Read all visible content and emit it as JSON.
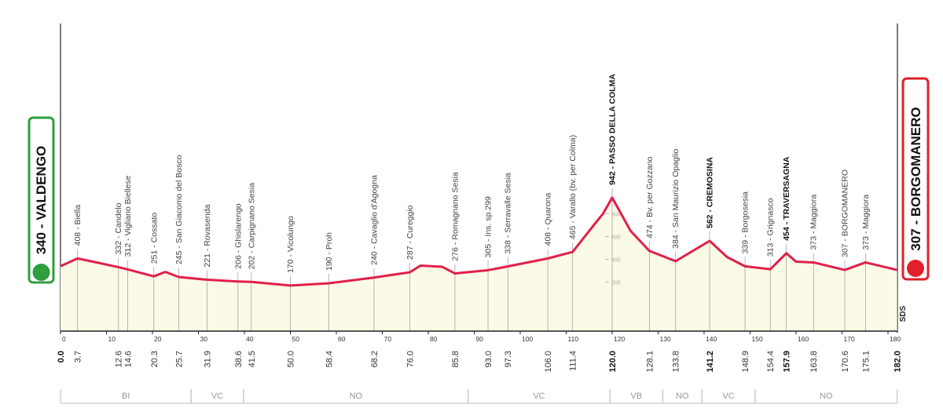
{
  "chart_data": {
    "type": "area",
    "start": "340 - VALDENGO",
    "finish": "307 - BORGOMANERO",
    "credit": "SDS",
    "xlim": [
      0,
      182
    ],
    "xticks": [
      0,
      10,
      20,
      30,
      40,
      50,
      60,
      70,
      80,
      90,
      100,
      110,
      120,
      130,
      140,
      150,
      160,
      170,
      180
    ],
    "ylim": [
      -230,
      2470
    ],
    "yticks": [
      200,
      400,
      600,
      800
    ],
    "color": "#e0204a",
    "fill": "#fafae6",
    "x": [
      0,
      3.7,
      12.6,
      14.6,
      20.3,
      22.8,
      25.7,
      31.9,
      38.6,
      41.5,
      50.0,
      58.4,
      68.2,
      76.0,
      78.3,
      83.0,
      85.8,
      93.0,
      97.3,
      106.0,
      111.4,
      116.0,
      118.0,
      120.0,
      124.0,
      128.1,
      133.8,
      141.2,
      145.0,
      148.9,
      154.4,
      157.9,
      160.0,
      163.8,
      170.6,
      175.1,
      182.0
    ],
    "values": [
      340,
      408,
      332,
      312,
      251,
      290,
      245,
      221,
      206,
      202,
      170,
      190,
      240,
      287,
      345,
      335,
      276,
      305,
      338,
      408,
      465,
      700,
      800,
      942,
      650,
      474,
      384,
      562,
      420,
      339,
      313,
      454,
      380,
      373,
      307,
      373,
      307
    ],
    "waypoints": [
      {
        "label": "408 - Biella",
        "km": 3.7
      },
      {
        "label": "332 - Candelo",
        "km": 12.6
      },
      {
        "label": "312 - Vigliano Biellese",
        "km": 14.6
      },
      {
        "label": "251 - Cossato",
        "km": 20.3
      },
      {
        "label": "245 - San Giacomo del Bosco",
        "km": 25.7
      },
      {
        "label": "221 - Rovasenda",
        "km": 31.9
      },
      {
        "label": "206 - Ghislarengo",
        "km": 38.6
      },
      {
        "label": "202 - Carpignano Sesia",
        "km": 41.5
      },
      {
        "label": "170 - Vicolungo",
        "km": {
          "value": 50,
          "label": "50.0"
        }
      },
      {
        "label": "190 - Proh",
        "km": 58.4
      },
      {
        "label": "240 - Cavaglio d'Agogna",
        "km": 68.2
      },
      {
        "label": "287 - Cureggio",
        "km": {
          "value": 76,
          "label": "76.0"
        }
      },
      {
        "label": "276 - Romagnano Sesia",
        "km": 85.8
      },
      {
        "label": "305 - Ins. sp.299",
        "km": {
          "value": 93,
          "label": "93.0"
        }
      },
      {
        "label": "338 - Serravalle Sesia",
        "km": 97.3
      },
      {
        "label": "408 - Quarona",
        "km": {
          "value": 106,
          "label": "106.0"
        }
      },
      {
        "label": "465 - Varallo (bv. per Colma)",
        "km": 111.4
      },
      {
        "label": "942 - PASSO DELLA COLMA",
        "km": {
          "value": 120,
          "label": "120.0"
        },
        "bold": true
      },
      {
        "label": "474 - Bv. per Gozzano",
        "km": 128.1
      },
      {
        "label": "384 - San Maurizio Opaglio",
        "km": 133.8
      },
      {
        "label": "562 - CREMOSINA",
        "km": 141.2,
        "bold": true
      },
      {
        "label": "339 - Borgosesia",
        "km": 148.9
      },
      {
        "label": "313 - Grignasco",
        "km": 154.4
      },
      {
        "label": "454 - TRAVERSAGNA",
        "km": 157.9,
        "bold": true
      },
      {
        "label": "373 - Maggiora",
        "km": 163.8
      },
      {
        "label": "307 - BORGOMANERO",
        "km": 170.6
      },
      {
        "label": "373 - Maggiora",
        "km": 175.1
      }
    ],
    "start_km": {
      "value": 0,
      "label": "0.0"
    },
    "finish_km": {
      "value": 182,
      "label": "182.0"
    },
    "regions": [
      {
        "label": "BI",
        "km": [
          0,
          28.4
        ]
      },
      {
        "label": "VC",
        "km": [
          28.4,
          39.8
        ]
      },
      {
        "label": "NO",
        "km": [
          39.8,
          88.7
        ]
      },
      {
        "label": "VC",
        "km": [
          88.7,
          119.5
        ]
      },
      {
        "label": "VB",
        "km": [
          119.5,
          131
        ]
      },
      {
        "label": "NO",
        "km": [
          131,
          139.5
        ]
      },
      {
        "label": "VC",
        "km": [
          139.5,
          151.1
        ]
      },
      {
        "label": "NO",
        "km": [
          151.1,
          182
        ]
      }
    ]
  }
}
